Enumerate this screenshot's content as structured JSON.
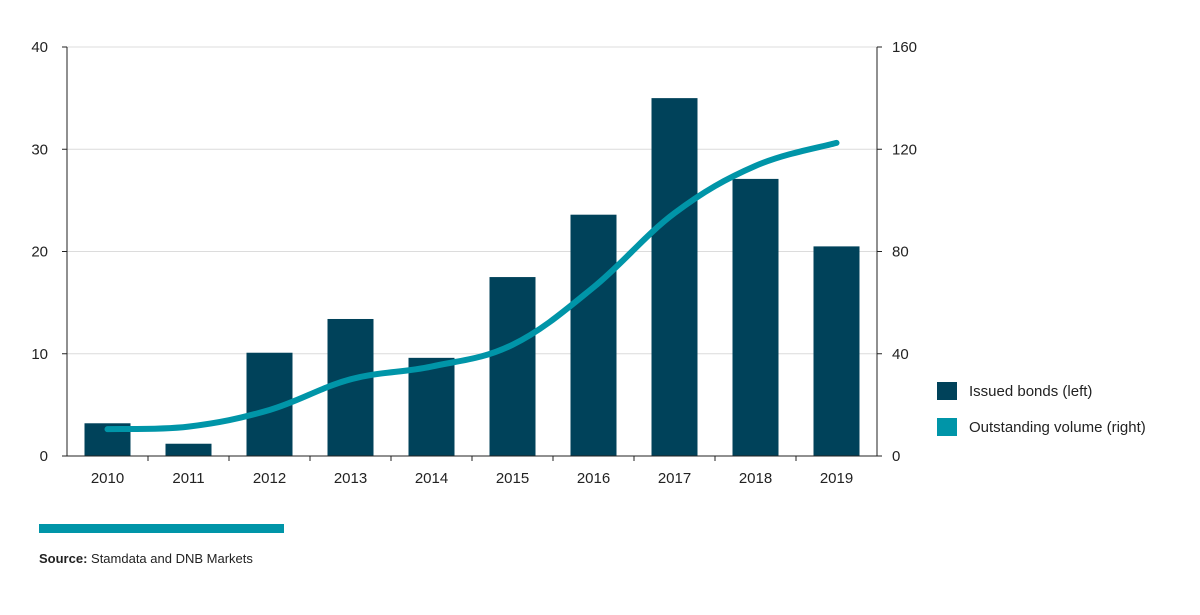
{
  "chart_data": {
    "type": "bar",
    "categories": [
      "2010",
      "2011",
      "2012",
      "2013",
      "2014",
      "2015",
      "2016",
      "2017",
      "2018",
      "2019"
    ],
    "series": [
      {
        "name": "Issued bonds (left)",
        "type": "bar",
        "axis": "left",
        "color": "#00425a",
        "values": [
          3.2,
          1.2,
          10.1,
          13.4,
          9.6,
          17.5,
          23.6,
          35.0,
          27.1,
          20.5
        ]
      },
      {
        "name": "Outstanding volume (right)",
        "type": "line",
        "axis": "right",
        "color": "#0095a8",
        "values": [
          10.5,
          11.5,
          18,
          30,
          35,
          43.5,
          66,
          95,
          113.5,
          122.5
        ]
      }
    ],
    "y_left": {
      "min": 0,
      "max": 40,
      "ticks": [
        "0",
        "10",
        "20",
        "30",
        "40"
      ]
    },
    "y_right": {
      "min": 0,
      "max": 160,
      "ticks": [
        "0",
        "40",
        "80",
        "120",
        "160"
      ]
    },
    "grid": true,
    "legend_position": "right"
  },
  "source": {
    "label": "Source:",
    "text": " Stamdata and DNB Markets"
  },
  "accent_color": "#0095a8"
}
